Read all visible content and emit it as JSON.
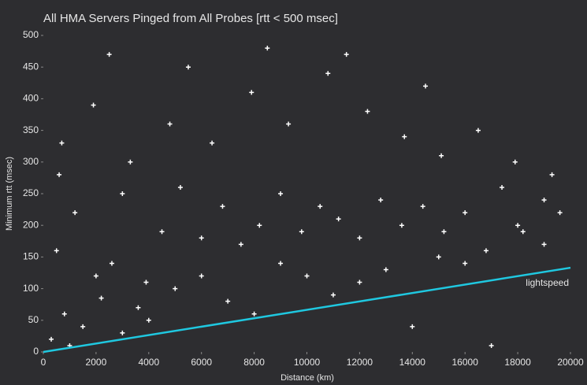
{
  "chart_data": {
    "type": "scatter",
    "title": "All HMA Servers Pinged from All Probes [rtt < 500 msec]",
    "x_label": "Distance (km)",
    "y_label": "Minimum rtt (msec)",
    "xlim": [
      0,
      20000
    ],
    "ylim": [
      0,
      500
    ],
    "xticks": [
      0,
      2000,
      4000,
      6000,
      8000,
      10000,
      12000,
      14000,
      16000,
      18000,
      20000
    ],
    "yticks": [
      0,
      50,
      100,
      150,
      200,
      250,
      300,
      350,
      400,
      450,
      500
    ],
    "points": {
      "color": "#ffffff",
      "x": [
        300,
        800,
        1500,
        2200,
        3000,
        3600,
        500,
        1200,
        2600,
        3900,
        4500,
        5200,
        6000,
        6800,
        7500,
        8200,
        9000,
        9800,
        10500,
        11200,
        12000,
        12800,
        13600,
        14400,
        15200,
        16000,
        16800,
        17400,
        18200,
        19000,
        19600,
        700,
        1900,
        3300,
        4800,
        6400,
        7900,
        9300,
        10800,
        12300,
        13700,
        15100,
        16500,
        17900,
        19300,
        2500,
        5500,
        8500,
        11500,
        14500,
        1000,
        4000,
        7000,
        10000,
        13000,
        16000,
        19000,
        600,
        3000,
        6000,
        9000,
        12000,
        15000,
        18000,
        2000,
        5000,
        8000,
        11000,
        14000,
        17000
      ],
      "y": [
        20,
        60,
        40,
        85,
        30,
        70,
        160,
        220,
        140,
        110,
        190,
        260,
        180,
        230,
        170,
        200,
        250,
        190,
        230,
        210,
        180,
        240,
        200,
        230,
        190,
        220,
        160,
        260,
        190,
        240,
        220,
        330,
        390,
        300,
        360,
        330,
        410,
        360,
        440,
        380,
        340,
        310,
        350,
        300,
        280,
        470,
        450,
        480,
        470,
        420,
        10,
        50,
        80,
        120,
        130,
        140,
        170,
        280,
        250,
        120,
        140,
        110,
        150,
        200,
        120,
        100,
        60,
        90,
        40,
        10
      ]
    },
    "reference_line": {
      "label": "lightspeed",
      "color": "#1fc8e0",
      "x": [
        0,
        20000
      ],
      "y": [
        0,
        133
      ]
    }
  }
}
